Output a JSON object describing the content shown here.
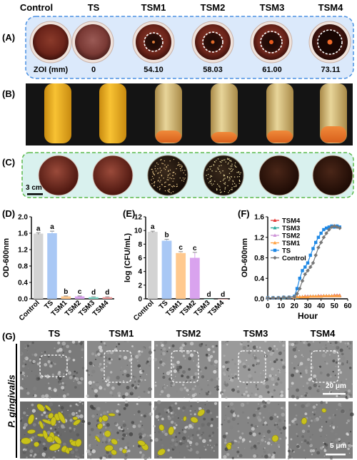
{
  "column_headers": [
    "Control",
    "TS",
    "TSM1",
    "TSM2",
    "TSM3",
    "TSM4"
  ],
  "panel_labels": {
    "A": "(A)",
    "B": "(B)",
    "C": "(C)",
    "D": "(D)",
    "E": "(E)",
    "F": "(F)",
    "G": "(G)"
  },
  "zoi": {
    "label": "ZOI (mm)",
    "values": [
      "0",
      "54.10",
      "58.03",
      "61.00",
      "73.11"
    ]
  },
  "panel_c": {
    "scale_bar": "3 cm"
  },
  "panel_g": {
    "columns": [
      "TS",
      "TSM1",
      "TSM2",
      "TSM3",
      "TSM4"
    ],
    "row_label": "P. gingivalis",
    "scale_top": "20 μm",
    "scale_bottom": "5 μm"
  },
  "chart_data": [
    {
      "type": "bar",
      "panel": "D",
      "categories": [
        "Control",
        "TS",
        "TSM1",
        "TSM2",
        "TSM3",
        "TSM4"
      ],
      "values": [
        1.59,
        1.6,
        0.06,
        0.06,
        0.04,
        0.04
      ],
      "errors": [
        0.02,
        0.05,
        0.01,
        0.01,
        0.01,
        0.01
      ],
      "significance": [
        "a",
        "a",
        "b",
        "c",
        "d",
        "d"
      ],
      "colors": [
        "#d3d3d3",
        "#a9c8f5",
        "#ffc98f",
        "#d9a3ee",
        "#7fd9c9",
        "#ef9a9a"
      ],
      "ylabel": "OD-600nm",
      "ylim": [
        0,
        2.0
      ],
      "yticks": [
        "0.0",
        "0.4",
        "0.8",
        "1.2",
        "1.6",
        "2.0"
      ]
    },
    {
      "type": "bar",
      "panel": "E",
      "categories": [
        "Control",
        "TS",
        "TSM1",
        "TSM2",
        "TSM3",
        "TSM4"
      ],
      "values": [
        9.8,
        8.5,
        6.7,
        6.0,
        0,
        0
      ],
      "errors": [
        0.1,
        0.2,
        0.2,
        0.8,
        0,
        0
      ],
      "significance": [
        "a",
        "b",
        "c",
        "c",
        "d",
        "d"
      ],
      "colors": [
        "#d3d3d3",
        "#a9c8f5",
        "#ffc98f",
        "#d9a3ee",
        "#7fd9c9",
        "#ef9a9a"
      ],
      "ylabel": "log (CFU/mL)",
      "ylim": [
        0,
        12
      ],
      "yticks": [
        "0",
        "2",
        "4",
        "6",
        "8",
        "10",
        "12"
      ]
    },
    {
      "type": "line",
      "panel": "F",
      "xlabel": "Hour",
      "ylabel": "OD-600nm",
      "xlim": [
        0,
        60
      ],
      "ylim": [
        0,
        1.6
      ],
      "xticks": [
        "0",
        "10",
        "20",
        "30",
        "40",
        "50",
        "60"
      ],
      "yticks": [
        "0.0",
        "0.4",
        "0.8",
        "1.2",
        "1.6"
      ],
      "legend_position": "top-left",
      "series": [
        {
          "name": "TSM4",
          "color": "#e53935",
          "marker": "triangle",
          "x": [
            0,
            4,
            8,
            12,
            16,
            20,
            22,
            24,
            26,
            28,
            30,
            32,
            34,
            36,
            38,
            40,
            42,
            44,
            46,
            48,
            50,
            52,
            54
          ],
          "y": [
            0.02,
            0.02,
            0.02,
            0.02,
            0.03,
            0.03,
            0.04,
            0.04,
            0.04,
            0.05,
            0.05,
            0.05,
            0.05,
            0.05,
            0.06,
            0.06,
            0.06,
            0.06,
            0.06,
            0.06,
            0.07,
            0.07,
            0.07
          ]
        },
        {
          "name": "TSM3",
          "color": "#26a69a",
          "marker": "triangle",
          "x": [
            0,
            4,
            8,
            12,
            16,
            20,
            22,
            24,
            26,
            28,
            30,
            32,
            34,
            36,
            38,
            40,
            42,
            44,
            46,
            48,
            50,
            52,
            54
          ],
          "y": [
            0.02,
            0.02,
            0.02,
            0.02,
            0.03,
            0.03,
            0.03,
            0.04,
            0.04,
            0.04,
            0.05,
            0.05,
            0.05,
            0.05,
            0.05,
            0.05,
            0.06,
            0.06,
            0.06,
            0.06,
            0.06,
            0.06,
            0.06
          ]
        },
        {
          "name": "TSM2",
          "color": "#ce93d8",
          "marker": "triangle",
          "x": [
            0,
            4,
            8,
            12,
            16,
            20,
            22,
            24,
            26,
            28,
            30,
            32,
            34,
            36,
            38,
            40,
            42,
            44,
            46,
            48,
            50,
            52,
            54
          ],
          "y": [
            0.02,
            0.02,
            0.02,
            0.03,
            0.03,
            0.03,
            0.04,
            0.04,
            0.04,
            0.04,
            0.05,
            0.05,
            0.05,
            0.05,
            0.05,
            0.06,
            0.06,
            0.06,
            0.06,
            0.06,
            0.06,
            0.06,
            0.06
          ]
        },
        {
          "name": "TSM1",
          "color": "#ffa040",
          "marker": "triangle",
          "x": [
            0,
            4,
            8,
            12,
            16,
            20,
            22,
            24,
            26,
            28,
            30,
            32,
            34,
            36,
            38,
            40,
            42,
            44,
            46,
            48,
            50,
            52,
            54
          ],
          "y": [
            0.02,
            0.02,
            0.02,
            0.03,
            0.03,
            0.03,
            0.04,
            0.04,
            0.04,
            0.04,
            0.04,
            0.05,
            0.05,
            0.05,
            0.05,
            0.05,
            0.06,
            0.06,
            0.06,
            0.06,
            0.06,
            0.06,
            0.06
          ]
        },
        {
          "name": "TS",
          "color": "#1e88e5",
          "marker": "square",
          "x": [
            0,
            4,
            8,
            12,
            16,
            20,
            22,
            24,
            26,
            28,
            30,
            32,
            34,
            36,
            38,
            40,
            42,
            44,
            46,
            48,
            50,
            52,
            54
          ],
          "y": [
            0.02,
            0.02,
            0.02,
            0.03,
            0.03,
            0.05,
            0.2,
            0.4,
            0.55,
            0.62,
            0.7,
            0.85,
            0.98,
            1.1,
            1.2,
            1.28,
            1.35,
            1.38,
            1.4,
            1.42,
            1.4,
            1.42,
            1.4
          ]
        },
        {
          "name": "Control",
          "color": "#777777",
          "marker": "diamond",
          "x": [
            0,
            4,
            8,
            12,
            16,
            20,
            22,
            24,
            26,
            28,
            30,
            32,
            34,
            36,
            38,
            40,
            42,
            44,
            46,
            48,
            50,
            52,
            54
          ],
          "y": [
            0.02,
            0.02,
            0.02,
            0.03,
            0.03,
            0.04,
            0.1,
            0.2,
            0.35,
            0.48,
            0.55,
            0.62,
            0.7,
            0.85,
            1.0,
            1.1,
            1.2,
            1.28,
            1.35,
            1.4,
            1.42,
            1.4,
            1.38
          ]
        }
      ]
    }
  ]
}
